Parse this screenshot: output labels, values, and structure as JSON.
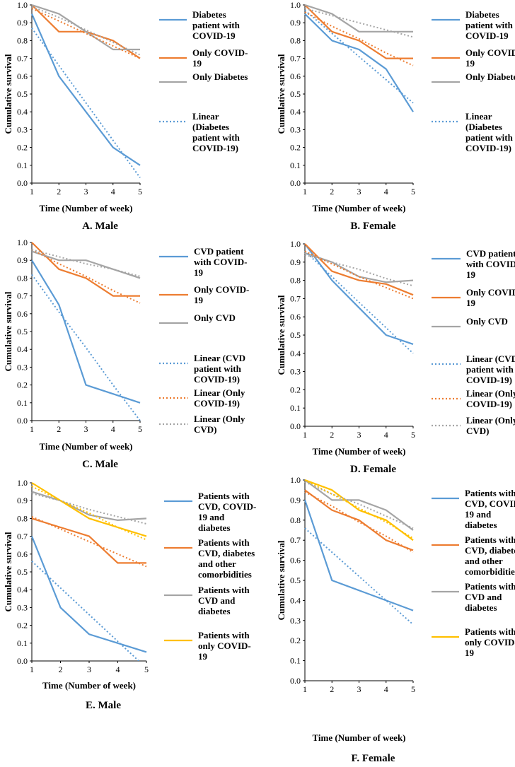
{
  "colors": {
    "blue": "#5B9BD5",
    "orange": "#ED7D31",
    "gray": "#A5A5A5",
    "yellow": "#FFC000"
  },
  "chart_data": [
    {
      "type": "line",
      "caption": "A. Male",
      "xlabel": "Time (Number of week)",
      "ylabel": "Cumulative survival",
      "x": [
        1,
        2,
        3,
        4,
        5
      ],
      "ylim": [
        0,
        1
      ],
      "yticks": [
        "0.0",
        "0.1",
        "0.2",
        "0.3",
        "0.4",
        "0.5",
        "0.6",
        "0.7",
        "0.8",
        "0.9",
        "1.0"
      ],
      "xticks": [
        "1",
        "2",
        "3",
        "4",
        "5"
      ],
      "series": [
        {
          "name": "Diabetes patient with COVID-19",
          "values": [
            0.95,
            0.6,
            0.4,
            0.2,
            0.1
          ],
          "color": "#5B9BD5",
          "dash": false
        },
        {
          "name": "Only COVID-19",
          "values": [
            1.0,
            0.85,
            0.85,
            0.8,
            0.7
          ],
          "color": "#ED7D31",
          "dash": false
        },
        {
          "name": "Only Diabetes",
          "values": [
            1.0,
            0.95,
            0.85,
            0.75,
            0.75
          ],
          "color": "#A5A5A5",
          "dash": false
        },
        {
          "name": "Linear (Diabetes patient with COVID-19)",
          "values": [
            0.87,
            0.66,
            0.45,
            0.24,
            0.03
          ],
          "color": "#5B9BD5",
          "dash": true
        },
        {
          "name": "",
          "values": [
            0.98,
            0.91,
            0.84,
            0.77,
            0.7
          ],
          "color": "#ED7D31",
          "dash": true
        },
        {
          "name": "",
          "values": [
            0.99,
            0.93,
            0.86,
            0.79,
            0.72
          ],
          "color": "#A5A5A5",
          "dash": true
        }
      ],
      "legend": [
        {
          "lines": [
            "Diabetes",
            "patient with",
            "COVID-19"
          ],
          "color": "#5B9BD5",
          "dash": false
        },
        {
          "lines": [
            "Only COVID-",
            "19"
          ],
          "color": "#ED7D31",
          "dash": false
        },
        {
          "lines": [
            "Only Diabetes"
          ],
          "color": "#A5A5A5",
          "dash": false
        },
        {
          "lines": [
            "Linear",
            "(Diabetes",
            "patient with",
            "COVID-19)"
          ],
          "color": "#5B9BD5",
          "dash": true
        }
      ]
    },
    {
      "type": "line",
      "caption": "B. Female",
      "xlabel": "Time (Number of week)",
      "ylabel": "Cumulative survival",
      "x": [
        1,
        2,
        3,
        4,
        5
      ],
      "ylim": [
        0,
        1
      ],
      "yticks": [
        "0.0",
        "0.1",
        "0.2",
        "0.3",
        "0.4",
        "0.5",
        "0.6",
        "0.7",
        "0.8",
        "0.9",
        "1.0"
      ],
      "xticks": [
        "1",
        "2",
        "3",
        "4",
        "5"
      ],
      "series": [
        {
          "name": "Diabetes patient with COVID-19",
          "values": [
            0.95,
            0.8,
            0.75,
            0.64,
            0.4
          ],
          "color": "#5B9BD5",
          "dash": false
        },
        {
          "name": "Only COVID-19",
          "values": [
            1.0,
            0.85,
            0.8,
            0.7,
            0.7
          ],
          "color": "#ED7D31",
          "dash": false
        },
        {
          "name": "Only Diabetes",
          "values": [
            1.0,
            0.95,
            0.85,
            0.85,
            0.85
          ],
          "color": "#A5A5A5",
          "dash": false
        },
        {
          "name": "Linear (Diabetes patient with COVID-19)",
          "values": [
            0.97,
            0.84,
            0.71,
            0.58,
            0.45
          ],
          "color": "#5B9BD5",
          "dash": true
        },
        {
          "name": "",
          "values": [
            0.96,
            0.88,
            0.81,
            0.73,
            0.66
          ],
          "color": "#ED7D31",
          "dash": true
        },
        {
          "name": "",
          "values": [
            0.98,
            0.94,
            0.9,
            0.86,
            0.82
          ],
          "color": "#A5A5A5",
          "dash": true
        }
      ],
      "legend": [
        {
          "lines": [
            "Diabetes",
            "patient with",
            "COVID-19"
          ],
          "color": "#5B9BD5",
          "dash": false
        },
        {
          "lines": [
            "Only COVID-",
            "19"
          ],
          "color": "#ED7D31",
          "dash": false
        },
        {
          "lines": [
            "Only Diabetes"
          ],
          "color": "#A5A5A5",
          "dash": false
        },
        {
          "lines": [
            "Linear",
            "(Diabetes",
            "patient with",
            "COVID-19)"
          ],
          "color": "#5B9BD5",
          "dash": true
        }
      ]
    },
    {
      "type": "line",
      "caption": "C. Male",
      "xlabel": "Time (Number of week)",
      "ylabel": "Cumulative survival",
      "x": [
        1,
        2,
        3,
        4,
        5
      ],
      "ylim": [
        0,
        1
      ],
      "yticks": [
        "0.0",
        "0.1",
        "0.2",
        "0.3",
        "0.4",
        "0.5",
        "0.6",
        "0.7",
        "0.8",
        "0.9",
        "1.0"
      ],
      "xticks": [
        "1",
        "2",
        "3",
        "4",
        "5"
      ],
      "series": [
        {
          "name": "CVD patient with COVID-19",
          "values": [
            0.9,
            0.65,
            0.2,
            0.15,
            0.1
          ],
          "color": "#5B9BD5",
          "dash": false
        },
        {
          "name": "Only COVID-19",
          "values": [
            1.0,
            0.85,
            0.8,
            0.7,
            0.7
          ],
          "color": "#ED7D31",
          "dash": false
        },
        {
          "name": "Only CVD",
          "values": [
            0.95,
            0.9,
            0.9,
            0.85,
            0.8
          ],
          "color": "#A5A5A5",
          "dash": false
        },
        {
          "name": "Linear (CVD patient with COVID-19)",
          "values": [
            0.82,
            0.61,
            0.41,
            0.2,
            0.0
          ],
          "color": "#5B9BD5",
          "dash": true
        },
        {
          "name": "Linear (Only COVID-19)",
          "values": [
            0.96,
            0.88,
            0.81,
            0.73,
            0.66
          ],
          "color": "#ED7D31",
          "dash": true
        },
        {
          "name": "Linear (Only CVD)",
          "values": [
            0.96,
            0.92,
            0.88,
            0.85,
            0.81
          ],
          "color": "#A5A5A5",
          "dash": true
        }
      ],
      "legend": [
        {
          "lines": [
            "CVD patient",
            "with COVID-",
            "19"
          ],
          "color": "#5B9BD5",
          "dash": false
        },
        {
          "lines": [
            "Only COVID-",
            "19"
          ],
          "color": "#ED7D31",
          "dash": false
        },
        {
          "lines": [
            "Only CVD"
          ],
          "color": "#A5A5A5",
          "dash": false
        },
        {
          "lines": [
            "Linear (CVD",
            "patient with",
            "COVID-19)"
          ],
          "color": "#5B9BD5",
          "dash": true
        },
        {
          "lines": [
            "Linear (Only",
            "COVID-19)"
          ],
          "color": "#ED7D31",
          "dash": true
        },
        {
          "lines": [
            "Linear (Only",
            "CVD)"
          ],
          "color": "#A5A5A5",
          "dash": true
        }
      ]
    },
    {
      "type": "line",
      "caption": "D. Female",
      "xlabel": "Time (Number of week)",
      "ylabel": "Cumulative survival",
      "x": [
        1,
        2,
        3,
        4,
        5
      ],
      "ylim": [
        0,
        1
      ],
      "yticks": [
        "0.0",
        "0.1",
        "0.2",
        "0.3",
        "0.4",
        "0.5",
        "0.6",
        "0.7",
        "0.8",
        "0.9",
        "1.0"
      ],
      "xticks": [
        "1",
        "2",
        "3",
        "4",
        "5"
      ],
      "series": [
        {
          "name": "CVD patient with COVID-19",
          "values": [
            1.0,
            0.8,
            0.65,
            0.5,
            0.45
          ],
          "color": "#5B9BD5",
          "dash": false
        },
        {
          "name": "Only COVID-19",
          "values": [
            1.0,
            0.85,
            0.8,
            0.78,
            0.72
          ],
          "color": "#ED7D31",
          "dash": false
        },
        {
          "name": "Only CVD",
          "values": [
            0.95,
            0.9,
            0.82,
            0.79,
            0.8
          ],
          "color": "#A5A5A5",
          "dash": false
        },
        {
          "name": "Linear (CVD patient with COVID-19)",
          "values": [
            0.96,
            0.82,
            0.68,
            0.54,
            0.4
          ],
          "color": "#5B9BD5",
          "dash": true
        },
        {
          "name": "Linear (Only COVID-19)",
          "values": [
            0.96,
            0.89,
            0.82,
            0.76,
            0.7
          ],
          "color": "#ED7D31",
          "dash": true
        },
        {
          "name": "Linear (Only CVD)",
          "values": [
            0.94,
            0.9,
            0.86,
            0.81,
            0.77
          ],
          "color": "#A5A5A5",
          "dash": true
        }
      ],
      "legend": [
        {
          "lines": [
            "CVD patient",
            "with COVID-",
            "19"
          ],
          "color": "#5B9BD5",
          "dash": false
        },
        {
          "lines": [
            "Only COVID-",
            "19"
          ],
          "color": "#ED7D31",
          "dash": false
        },
        {
          "lines": [
            "Only CVD"
          ],
          "color": "#A5A5A5",
          "dash": false
        },
        {
          "lines": [
            "Linear (CVD",
            "patient with",
            "COVID-19)"
          ],
          "color": "#5B9BD5",
          "dash": true
        },
        {
          "lines": [
            "Linear (Only",
            "COVID-19)"
          ],
          "color": "#ED7D31",
          "dash": true
        },
        {
          "lines": [
            "Linear (Only",
            "CVD)"
          ],
          "color": "#A5A5A5",
          "dash": true
        }
      ]
    },
    {
      "type": "line",
      "caption": "E. Male",
      "xlabel": "Time (Number of week)",
      "ylabel": "Cumulative survival",
      "x": [
        1,
        2,
        3,
        4,
        5
      ],
      "ylim": [
        0,
        1
      ],
      "yticks": [
        "0.0",
        "0.1",
        "0.2",
        "0.3",
        "0.4",
        "0.5",
        "0.6",
        "0.7",
        "0.8",
        "0.9",
        "1.0"
      ],
      "xticks": [
        "1",
        "2",
        "3",
        "4",
        "5"
      ],
      "series": [
        {
          "name": "Patients with CVD, COVID-19 and diabetes",
          "values": [
            0.7,
            0.3,
            0.15,
            0.1,
            0.05
          ],
          "color": "#5B9BD5",
          "dash": false
        },
        {
          "name": "Patients with CVD, diabetes and other comorbidities",
          "values": [
            0.8,
            0.75,
            0.7,
            0.55,
            0.55
          ],
          "color": "#ED7D31",
          "dash": false
        },
        {
          "name": "Patients with CVD and diabetes",
          "values": [
            0.95,
            0.9,
            0.82,
            0.79,
            0.8
          ],
          "color": "#A5A5A5",
          "dash": false
        },
        {
          "name": "Patients with only COVID-19",
          "values": [
            1.0,
            0.9,
            0.8,
            0.75,
            0.7
          ],
          "color": "#FFC000",
          "dash": false
        },
        {
          "name": "",
          "values": [
            0.56,
            0.41,
            0.26,
            0.11,
            -0.04
          ],
          "color": "#5B9BD5",
          "dash": true
        },
        {
          "name": "",
          "values": [
            0.81,
            0.74,
            0.67,
            0.6,
            0.53
          ],
          "color": "#ED7D31",
          "dash": true
        },
        {
          "name": "",
          "values": [
            0.94,
            0.9,
            0.85,
            0.81,
            0.77
          ],
          "color": "#A5A5A5",
          "dash": true
        },
        {
          "name": "",
          "values": [
            0.98,
            0.9,
            0.83,
            0.75,
            0.68
          ],
          "color": "#FFC000",
          "dash": true
        }
      ],
      "legend": [
        {
          "lines": [
            "Patients with",
            "CVD, COVID-",
            "19 and",
            "diabetes"
          ],
          "color": "#5B9BD5",
          "dash": false
        },
        {
          "lines": [
            "Patients with",
            "CVD, diabetes",
            "and other",
            "comorbidities"
          ],
          "color": "#ED7D31",
          "dash": false
        },
        {
          "lines": [
            "Patients with",
            "CVD and",
            "diabetes"
          ],
          "color": "#A5A5A5",
          "dash": false
        },
        {
          "lines": [
            "Patients with",
            "only COVID-",
            "19"
          ],
          "color": "#FFC000",
          "dash": false
        }
      ]
    },
    {
      "type": "line",
      "caption": "F. Female",
      "xlabel": "Time (Number of week)",
      "ylabel": "Cumulative survival",
      "x": [
        1,
        2,
        3,
        4,
        5
      ],
      "ylim": [
        0,
        1
      ],
      "yticks": [
        "0.0",
        "0.1",
        "0.2",
        "0.3",
        "0.4",
        "0.5",
        "0.6",
        "0.7",
        "0.8",
        "0.9",
        "1.0"
      ],
      "xticks": [
        "1",
        "2",
        "3",
        "4",
        "5"
      ],
      "series": [
        {
          "name": "Patients with CVD, COVID-19 and diabetes",
          "values": [
            0.9,
            0.5,
            0.45,
            0.4,
            0.35
          ],
          "color": "#5B9BD5",
          "dash": false
        },
        {
          "name": "Patients with CVD, diabetes and other comorbidities",
          "values": [
            0.95,
            0.85,
            0.8,
            0.7,
            0.65
          ],
          "color": "#ED7D31",
          "dash": false
        },
        {
          "name": "Patients with CVD and diabetes",
          "values": [
            1.0,
            0.9,
            0.9,
            0.85,
            0.75
          ],
          "color": "#A5A5A5",
          "dash": false
        },
        {
          "name": "Patients with only COVID-19",
          "values": [
            1.0,
            0.95,
            0.85,
            0.8,
            0.7
          ],
          "color": "#FFC000",
          "dash": false
        },
        {
          "name": "",
          "values": [
            0.76,
            0.64,
            0.52,
            0.4,
            0.28
          ],
          "color": "#5B9BD5",
          "dash": true
        },
        {
          "name": "",
          "values": [
            0.94,
            0.87,
            0.79,
            0.72,
            0.64
          ],
          "color": "#ED7D31",
          "dash": true
        },
        {
          "name": "",
          "values": [
            0.99,
            0.93,
            0.88,
            0.82,
            0.76
          ],
          "color": "#A5A5A5",
          "dash": true
        },
        {
          "name": "",
          "values": [
            1.0,
            0.93,
            0.86,
            0.79,
            0.71
          ],
          "color": "#FFC000",
          "dash": true
        }
      ],
      "legend": [
        {
          "lines": [
            "Patients with",
            "CVD, COVID-",
            "19 and",
            "diabetes"
          ],
          "color": "#5B9BD5",
          "dash": false
        },
        {
          "lines": [
            "Patients with",
            "CVD, diabetes",
            "and other",
            "comorbidities"
          ],
          "color": "#ED7D31",
          "dash": false
        },
        {
          "lines": [
            "Patients with",
            "CVD and",
            "diabetes"
          ],
          "color": "#A5A5A5",
          "dash": false
        },
        {
          "lines": [
            "Patients with",
            "only COVID-",
            "19"
          ],
          "color": "#FFC000",
          "dash": false
        }
      ]
    }
  ]
}
